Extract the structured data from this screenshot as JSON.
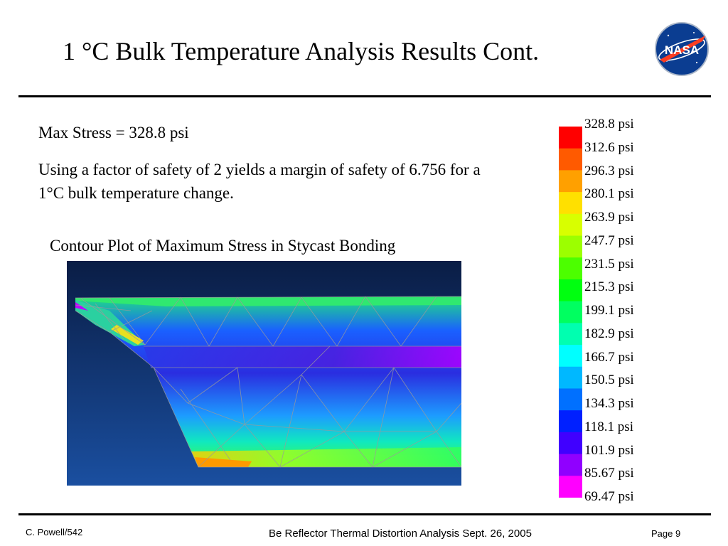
{
  "slide": {
    "title": "1 °C Bulk Temperature Analysis Results Cont.",
    "logo_text": "NASA",
    "max_stress": "Max Stress = 328.8 psi",
    "safety_text": "Using a factor of safety of 2 yields a margin of safety of  6.756 for a 1°C bulk temperature change.",
    "plot_caption": "Contour Plot of Maximum Stress in Stycast Bonding"
  },
  "legend": {
    "labels": [
      "328.8 psi",
      "312.6 psi",
      "296.3 psi",
      "280.1 psi",
      "263.9 psi",
      "247.7 psi",
      "231.5 psi",
      "215.3 psi",
      "199.1 psi",
      "182.9 psi",
      "166.7 psi",
      "150.5 psi",
      "134.3 psi",
      "118.1 psi",
      "101.9 psi",
      "85.67 psi",
      "69.47 psi"
    ],
    "colors": [
      "#ff0000",
      "#ff5a00",
      "#ffa000",
      "#ffe000",
      "#d8ff00",
      "#9cff00",
      "#4cff00",
      "#00ff10",
      "#00ff60",
      "#00ffb0",
      "#00ffff",
      "#00b8ff",
      "#0070ff",
      "#0020ff",
      "#4000ff",
      "#9000ff",
      "#ff00ff"
    ]
  },
  "footer": {
    "author": "C. Powell/542",
    "center": "Be Reflector Thermal Distortion Analysis   Sept. 26, 2005",
    "page": "Page 9"
  }
}
